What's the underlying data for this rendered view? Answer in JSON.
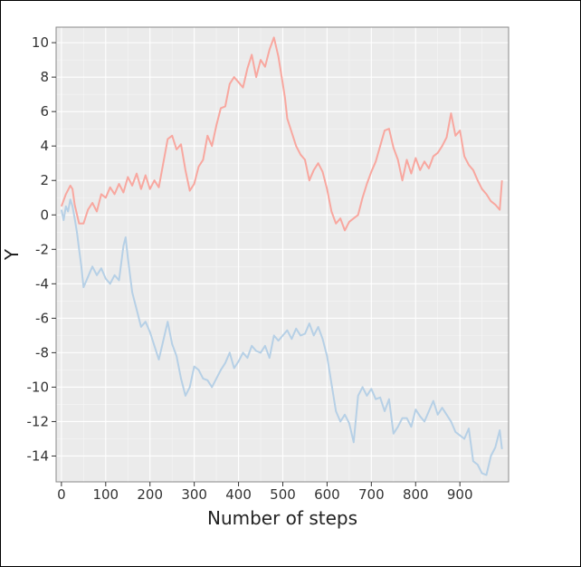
{
  "chart_data": {
    "type": "line",
    "title": "",
    "xlabel": "Number of steps",
    "ylabel": "Y",
    "xlim": [
      -12,
      1010
    ],
    "ylim": [
      -15.5,
      10.9
    ],
    "xticks": [
      0,
      100,
      200,
      300,
      400,
      500,
      600,
      700,
      800,
      900
    ],
    "yticks": [
      -14,
      -12,
      -10,
      -8,
      -6,
      -4,
      -2,
      0,
      2,
      4,
      6,
      8,
      10
    ],
    "grid": true,
    "legend": "none",
    "background": "#ebebeb",
    "series": [
      {
        "color": "#f8a79f",
        "x": [
          0,
          10,
          20,
          25,
          30,
          40,
          50,
          60,
          70,
          80,
          90,
          100,
          110,
          120,
          130,
          140,
          150,
          160,
          170,
          180,
          190,
          200,
          210,
          220,
          230,
          240,
          250,
          260,
          270,
          280,
          290,
          300,
          310,
          320,
          330,
          340,
          350,
          360,
          370,
          380,
          390,
          400,
          410,
          420,
          430,
          440,
          450,
          460,
          470,
          480,
          490,
          500,
          505,
          510,
          520,
          530,
          540,
          550,
          560,
          570,
          580,
          590,
          600,
          610,
          620,
          630,
          640,
          650,
          660,
          670,
          680,
          690,
          700,
          710,
          720,
          730,
          740,
          750,
          760,
          770,
          780,
          790,
          800,
          810,
          820,
          830,
          840,
          850,
          860,
          870,
          880,
          890,
          900,
          910,
          920,
          930,
          940,
          950,
          960,
          970,
          980,
          990,
          995
        ],
        "y": [
          0.5,
          1.2,
          1.7,
          1.5,
          0.6,
          -0.5,
          -0.5,
          0.3,
          0.7,
          0.2,
          1.2,
          1.0,
          1.6,
          1.2,
          1.8,
          1.3,
          2.2,
          1.7,
          2.4,
          1.5,
          2.3,
          1.5,
          2.0,
          1.6,
          3.0,
          4.4,
          4.6,
          3.8,
          4.1,
          2.6,
          1.4,
          1.8,
          2.8,
          3.2,
          4.6,
          4.0,
          5.2,
          6.2,
          6.3,
          7.6,
          8.0,
          7.7,
          7.4,
          8.5,
          9.3,
          8.0,
          9.0,
          8.6,
          9.6,
          10.3,
          9.2,
          7.6,
          6.8,
          5.6,
          4.8,
          4.0,
          3.5,
          3.2,
          2.0,
          2.6,
          3.0,
          2.5,
          1.5,
          0.2,
          -0.5,
          -0.2,
          -0.9,
          -0.4,
          -0.2,
          0.0,
          1.0,
          1.8,
          2.5,
          3.1,
          4.0,
          4.9,
          5.0,
          3.9,
          3.2,
          2.0,
          3.2,
          2.4,
          3.3,
          2.6,
          3.1,
          2.7,
          3.4,
          3.6,
          4.0,
          4.5,
          5.9,
          4.6,
          4.9,
          3.4,
          2.9,
          2.6,
          2.0,
          1.5,
          1.2,
          0.8,
          0.6,
          0.3,
          2.0
        ]
      },
      {
        "color": "#b6d0e6",
        "x": [
          0,
          5,
          10,
          15,
          20,
          25,
          30,
          35,
          40,
          45,
          50,
          55,
          60,
          70,
          80,
          90,
          100,
          110,
          120,
          130,
          140,
          145,
          150,
          160,
          170,
          180,
          190,
          200,
          210,
          220,
          230,
          240,
          250,
          260,
          270,
          280,
          290,
          300,
          310,
          320,
          330,
          340,
          350,
          360,
          370,
          380,
          390,
          400,
          410,
          420,
          430,
          440,
          450,
          460,
          470,
          480,
          490,
          500,
          510,
          520,
          530,
          540,
          550,
          560,
          570,
          580,
          590,
          600,
          610,
          620,
          630,
          640,
          650,
          660,
          670,
          680,
          690,
          700,
          710,
          720,
          730,
          740,
          750,
          760,
          770,
          780,
          790,
          800,
          810,
          820,
          830,
          840,
          850,
          860,
          870,
          880,
          890,
          900,
          910,
          920,
          930,
          940,
          950,
          960,
          970,
          980,
          990,
          995
        ],
        "y": [
          0.3,
          -0.3,
          0.5,
          0.2,
          0.9,
          0.5,
          -0.2,
          -1.0,
          -2.0,
          -3.0,
          -4.2,
          -3.9,
          -3.6,
          -3.0,
          -3.5,
          -3.1,
          -3.7,
          -4.0,
          -3.5,
          -3.8,
          -1.8,
          -1.3,
          -2.5,
          -4.5,
          -5.5,
          -6.5,
          -6.2,
          -6.8,
          -7.6,
          -8.4,
          -7.3,
          -6.2,
          -7.5,
          -8.2,
          -9.5,
          -10.5,
          -10.0,
          -8.8,
          -9.0,
          -9.5,
          -9.6,
          -10.0,
          -9.5,
          -9.0,
          -8.6,
          -8.0,
          -8.9,
          -8.5,
          -8.0,
          -8.3,
          -7.6,
          -7.9,
          -8.0,
          -7.6,
          -8.3,
          -7.0,
          -7.3,
          -7.0,
          -6.7,
          -7.2,
          -6.6,
          -7.0,
          -6.9,
          -6.3,
          -7.0,
          -6.5,
          -7.2,
          -8.2,
          -9.8,
          -11.4,
          -12.0,
          -11.6,
          -12.1,
          -13.2,
          -10.5,
          -10.0,
          -10.5,
          -10.1,
          -10.7,
          -10.6,
          -11.4,
          -10.7,
          -12.7,
          -12.3,
          -11.8,
          -11.8,
          -12.3,
          -11.3,
          -11.7,
          -12.0,
          -11.4,
          -10.8,
          -11.6,
          -11.2,
          -11.6,
          -12.0,
          -12.6,
          -12.8,
          -13.0,
          -12.4,
          -14.3,
          -14.5,
          -15.0,
          -15.1,
          -14.0,
          -13.5,
          -12.5,
          -13.6
        ]
      }
    ]
  }
}
